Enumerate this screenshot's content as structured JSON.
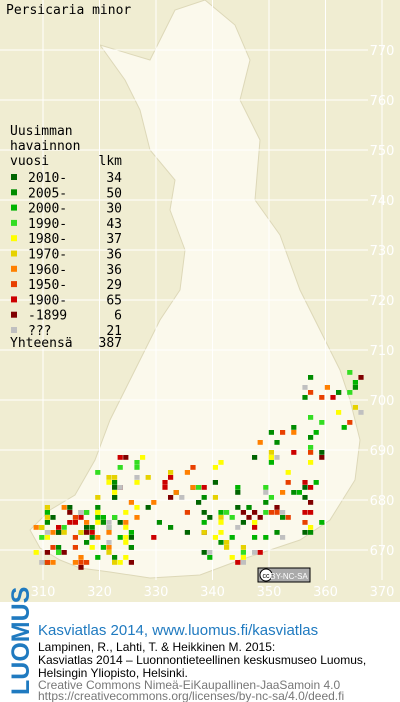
{
  "map": {
    "title": "Persicaria minor",
    "x_ticks": [
      310,
      320,
      330,
      340,
      350,
      360,
      370
    ],
    "y_ticks": [
      670,
      680,
      690,
      700,
      710,
      720,
      730,
      740,
      750,
      760,
      770
    ],
    "legend": {
      "heading": [
        "Uusimman",
        "havainnon"
      ],
      "col_year": "vuosi",
      "col_count": "lkm",
      "entries": [
        {
          "label": "2010-",
          "count": 34,
          "color": "#006400"
        },
        {
          "label": "2005-",
          "count": 50,
          "color": "#008c00"
        },
        {
          "label": "2000-",
          "count": 30,
          "color": "#00b400"
        },
        {
          "label": "1990-",
          "count": 43,
          "color": "#33dd22"
        },
        {
          "label": "1980-",
          "count": 37,
          "color": "#ffff00"
        },
        {
          "label": "1970-",
          "count": 36,
          "color": "#e6d200"
        },
        {
          "label": "1960-",
          "count": 36,
          "color": "#ff8000"
        },
        {
          "label": "1950-",
          "count": 29,
          "color": "#e84000"
        },
        {
          "label": "1900-",
          "count": 65,
          "color": "#cc0000"
        },
        {
          "label": "-1899",
          "count": 6,
          "color": "#800000"
        },
        {
          "label": "???",
          "count": 21,
          "color": "#c0c0c0"
        }
      ],
      "total_label": "Yhteensä",
      "total": 387
    },
    "license_badge": {
      "icon": "cc",
      "text": "BY-NC-SA"
    },
    "logo": "LUOMUS",
    "credits": {
      "headline": "Kasviatlas 2014, www.luomus.fi/kasviatlas",
      "citation": [
        "Lampinen, R., Lahti, T. & Heikkinen M. 2015:",
        "Kasviatlas 2014 – Luonnontieteellinen keskusmuseo Luomus,",
        "Helsingin Yliopisto, Helsinki."
      ],
      "license": [
        "Creative Commons Nimeä-EiKaupallinen-JaaSamoin 4.0",
        "https://creativecommons.org/licenses/by-nc-sa/4.0/deed.fi"
      ]
    }
  }
}
